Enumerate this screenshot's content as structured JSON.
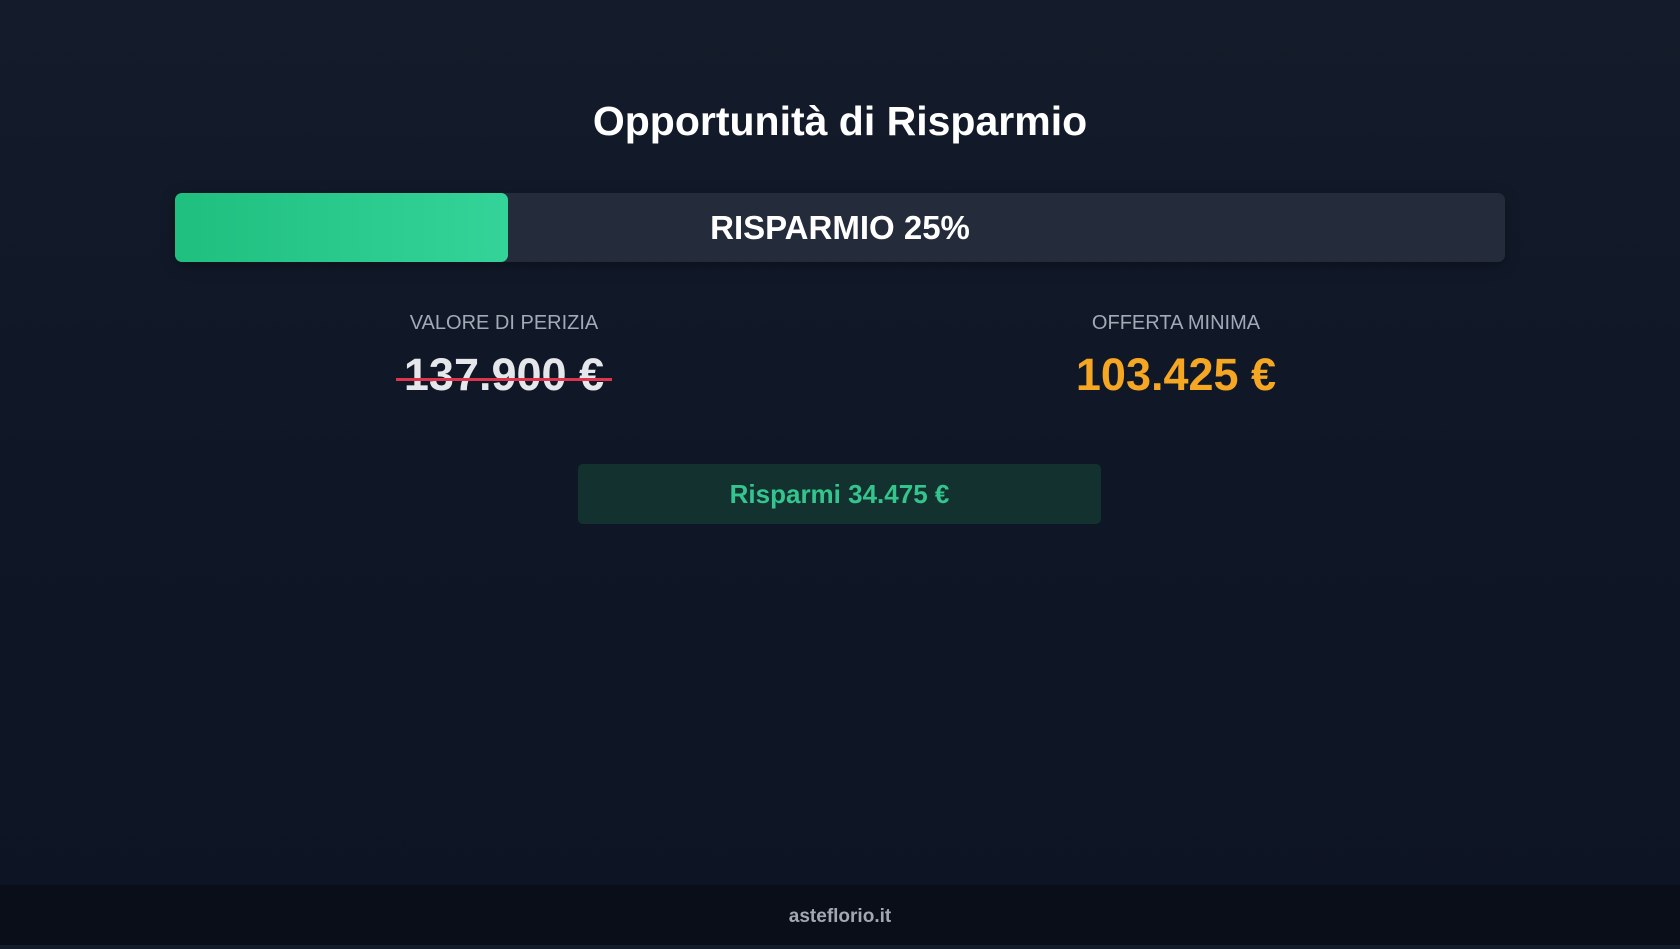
{
  "title": "Opportunità di Risparmio",
  "progress": {
    "label": "RISPARMIO 25%",
    "percent": 25,
    "color": "#34d399"
  },
  "appraisal": {
    "label": "VALORE DI PERIZIA",
    "value": "137.900 €"
  },
  "minimum_offer": {
    "label": "OFFERTA MINIMA",
    "value": "103.425 €",
    "color": "#f5a623"
  },
  "savings": {
    "label": "Risparmi 34.475 €"
  },
  "footer": {
    "text": "asteflorio.it"
  }
}
